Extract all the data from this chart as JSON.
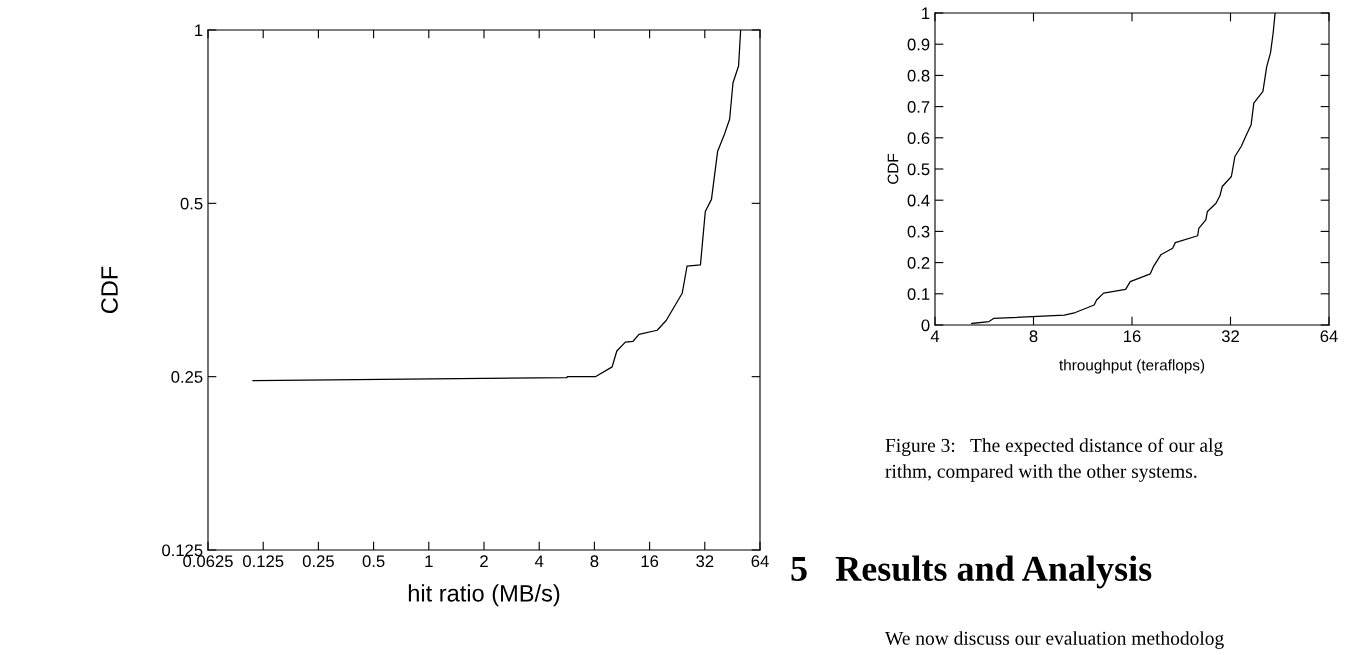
{
  "chart_data": [
    {
      "type": "line",
      "xlabel": "hit ratio (MB/s)",
      "ylabel": "CDF",
      "log": "xy",
      "marker": "none",
      "line_style": "solid",
      "xlim": [
        0.0625,
        64
      ],
      "ylim": [
        0.125,
        1
      ],
      "xticks": [
        0.0625,
        0.125,
        0.25,
        0.5,
        1,
        2,
        4,
        8,
        16,
        32,
        64
      ],
      "yticks": [
        0.125,
        0.25,
        0.5,
        1
      ],
      "series": [
        {
          "color": "#000000",
          "x": [
            0.11,
            5.66,
            5.7,
            8.1,
            10.0,
            10.1,
            10.6,
            11.8,
            13.0,
            14.0,
            17.6,
            19.7,
            24.1,
            25.6,
            30.3,
            32.2,
            34.8,
            37.6,
            41.0,
            43.7,
            45.6,
            48.9,
            50.2
          ],
          "values": [
            0.246,
            0.249,
            0.25,
            0.25,
            0.26,
            0.263,
            0.277,
            0.287,
            0.288,
            0.296,
            0.301,
            0.313,
            0.349,
            0.389,
            0.391,
            0.484,
            0.508,
            0.616,
            0.66,
            0.7,
            0.81,
            0.866,
            1.0
          ]
        }
      ]
    },
    {
      "type": "line",
      "xlabel": "throughput (teraflops)",
      "ylabel": "CDF",
      "log": "x",
      "marker": "none",
      "line_style": "solid",
      "xlim": [
        4,
        64
      ],
      "ylim": [
        0,
        1
      ],
      "xticks": [
        4,
        8,
        16,
        32,
        64
      ],
      "yticks": [
        0,
        0.1,
        0.2,
        0.3,
        0.4,
        0.5,
        0.6,
        0.7,
        0.8,
        0.9,
        1
      ],
      "series": [
        {
          "color": "#000000",
          "x": [
            5.18,
            5.85,
            6.04,
            9.94,
            10.74,
            12.26,
            12.47,
            13.1,
            15.3,
            15.8,
            18.2,
            18.6,
            19.6,
            21.3,
            21.7,
            25.4,
            25.6,
            26.9,
            27.2,
            28.9,
            29.7,
            30.2,
            32.2,
            33.0,
            34.5,
            35.6,
            37.0,
            37.7,
            40.2,
            41.3,
            42.4,
            43.2,
            43.8
          ],
          "values": [
            0.005,
            0.011,
            0.021,
            0.032,
            0.04,
            0.064,
            0.08,
            0.102,
            0.114,
            0.139,
            0.164,
            0.187,
            0.225,
            0.246,
            0.264,
            0.286,
            0.31,
            0.337,
            0.364,
            0.39,
            0.414,
            0.444,
            0.476,
            0.54,
            0.572,
            0.604,
            0.642,
            0.711,
            0.749,
            0.829,
            0.872,
            0.936,
            1.0
          ]
        }
      ],
      "annotations": [
        "Figure 3:   The expected distance of our alg",
        "rithm, compared with the other systems.",
        "5   Results and Analysis",
        "We now discuss our evaluation methodolog"
      ]
    }
  ]
}
